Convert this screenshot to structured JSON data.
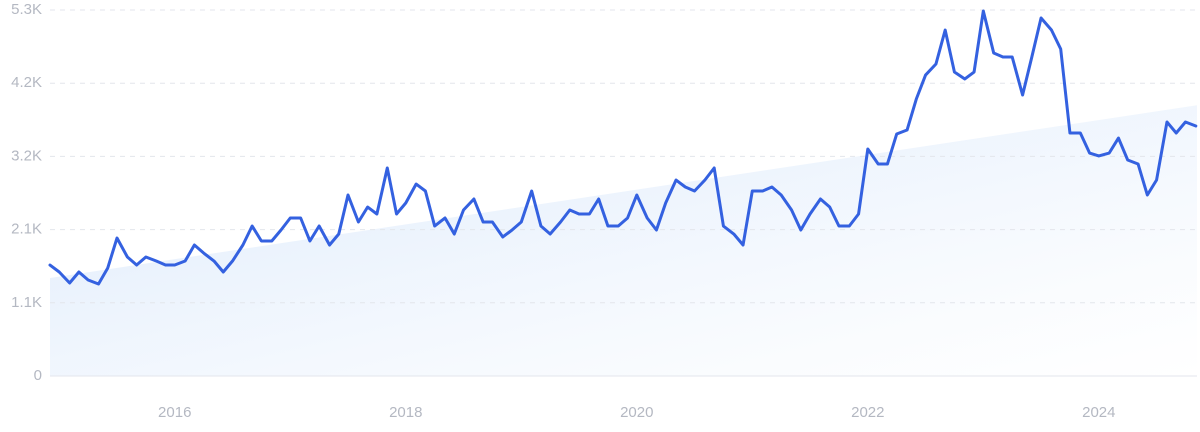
{
  "chart_data": {
    "type": "line",
    "x": [
      2014.92,
      2015.0,
      2015.09,
      2015.17,
      2015.25,
      2015.34,
      2015.42,
      2015.5,
      2015.59,
      2015.67,
      2015.75,
      2015.84,
      2015.92,
      2016.0,
      2016.09,
      2016.17,
      2016.25,
      2016.34,
      2016.42,
      2016.5,
      2016.59,
      2016.67,
      2016.75,
      2016.84,
      2016.92,
      2017.0,
      2017.09,
      2017.17,
      2017.25,
      2017.34,
      2017.42,
      2017.5,
      2017.59,
      2017.67,
      2017.75,
      2017.84,
      2017.92,
      2018.0,
      2018.09,
      2018.17,
      2018.25,
      2018.34,
      2018.42,
      2018.5,
      2018.59,
      2018.67,
      2018.75,
      2018.84,
      2018.92,
      2019.0,
      2019.09,
      2019.17,
      2019.25,
      2019.34,
      2019.42,
      2019.5,
      2019.59,
      2019.67,
      2019.75,
      2019.84,
      2019.92,
      2020.0,
      2020.09,
      2020.17,
      2020.25,
      2020.34,
      2020.42,
      2020.5,
      2020.59,
      2020.67,
      2020.75,
      2020.84,
      2020.92,
      2021.0,
      2021.09,
      2021.17,
      2021.25,
      2021.34,
      2021.42,
      2021.5,
      2021.59,
      2021.67,
      2021.75,
      2021.84,
      2021.92,
      2022.0,
      2022.09,
      2022.17,
      2022.25,
      2022.34,
      2022.42,
      2022.5,
      2022.59,
      2022.67,
      2022.75,
      2022.84,
      2022.92,
      2023.0,
      2023.09,
      2023.17,
      2023.25,
      2023.34,
      2023.42,
      2023.5,
      2023.59,
      2023.67,
      2023.75,
      2023.84,
      2023.92,
      2024.0,
      2024.09,
      2024.17,
      2024.25,
      2024.34,
      2024.42,
      2024.5,
      2024.59,
      2024.67,
      2024.75,
      2024.84
    ],
    "series": [
      {
        "color": "#3461e0",
        "values": [
          1607,
          1506,
          1347,
          1506,
          1390,
          1332,
          1564,
          1998,
          1723,
          1607,
          1723,
          1665,
          1607,
          1607,
          1665,
          1897,
          1781,
          1665,
          1506,
          1665,
          1897,
          2172,
          1955,
          1955,
          2114,
          2288,
          2288,
          1955,
          2172,
          1897,
          2056,
          2621,
          2230,
          2447,
          2346,
          3012,
          2346,
          2505,
          2780,
          2679,
          2172,
          2288,
          2056,
          2404,
          2563,
          2230,
          2230,
          2013,
          2114,
          2230,
          2679,
          2172,
          2056,
          2230,
          2404,
          2346,
          2346,
          2563,
          2172,
          2172,
          2288,
          2621,
          2288,
          2114,
          2505,
          2838,
          2737,
          2679,
          2838,
          3012,
          2172,
          2056,
          1897,
          2679,
          2679,
          2737,
          2621,
          2404,
          2114,
          2346,
          2563,
          2447,
          2172,
          2172,
          2346,
          3287,
          3070,
          3070,
          3504,
          3562,
          4011,
          4358,
          4518,
          5010,
          4402,
          4301,
          4402,
          5285,
          4677,
          4619,
          4619,
          4069,
          4619,
          5184,
          5010,
          4735,
          3519,
          3519,
          3229,
          3186,
          3229,
          3446,
          3128,
          3070,
          2621,
          2838,
          3678,
          3519,
          3678,
          3620
        ]
      }
    ],
    "trend": {
      "color": "#dbe9fb",
      "values": [
        1420,
        3920
      ]
    },
    "xlim": [
      2014.92,
      2024.85
    ],
    "xticks": [
      2016,
      2018,
      2020,
      2022,
      2024
    ],
    "ylim": [
      0,
      5300
    ],
    "yticks": [
      0,
      {
        "value": 1060,
        "label": "1.1K"
      },
      {
        "value": 2120,
        "label": "2.1K"
      },
      {
        "value": 3180,
        "label": "3.2K"
      },
      {
        "value": 4240,
        "label": "4.2K"
      },
      {
        "value": 5300,
        "label": "5.3K"
      }
    ],
    "grid": true
  }
}
